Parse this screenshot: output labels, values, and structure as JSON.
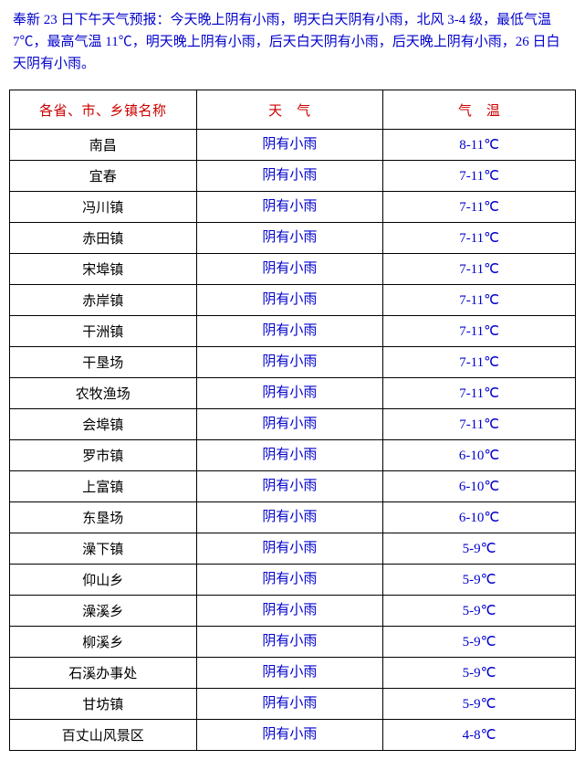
{
  "forecast_text": "奉新 23 日下午天气预报：今天晚上阴有小雨，明天白天阴有小雨，北风 3-4 级，最低气温 7℃，最高气温 11℃，明天晚上阴有小雨，后天白天阴有小雨，后天晚上阴有小雨，26 日白天阴有小雨。",
  "table": {
    "headers": {
      "location": "各省、市、乡镇名称",
      "weather": "天　气",
      "temperature": "气　温"
    },
    "rows": [
      {
        "location": "南昌",
        "weather": "阴有小雨",
        "temperature": "8-11℃"
      },
      {
        "location": "宜春",
        "weather": "阴有小雨",
        "temperature": "7-11℃"
      },
      {
        "location": "冯川镇",
        "weather": "阴有小雨",
        "temperature": "7-11℃"
      },
      {
        "location": "赤田镇",
        "weather": "阴有小雨",
        "temperature": "7-11℃"
      },
      {
        "location": "宋埠镇",
        "weather": "阴有小雨",
        "temperature": "7-11℃"
      },
      {
        "location": "赤岸镇",
        "weather": "阴有小雨",
        "temperature": "7-11℃"
      },
      {
        "location": "干洲镇",
        "weather": "阴有小雨",
        "temperature": "7-11℃"
      },
      {
        "location": "干垦场",
        "weather": "阴有小雨",
        "temperature": "7-11℃"
      },
      {
        "location": "农牧渔场",
        "weather": "阴有小雨",
        "temperature": "7-11℃"
      },
      {
        "location": "会埠镇",
        "weather": "阴有小雨",
        "temperature": "7-11℃"
      },
      {
        "location": "罗市镇",
        "weather": "阴有小雨",
        "temperature": "6-10℃"
      },
      {
        "location": "上富镇",
        "weather": "阴有小雨",
        "temperature": "6-10℃"
      },
      {
        "location": "东垦场",
        "weather": "阴有小雨",
        "temperature": "6-10℃"
      },
      {
        "location": "澡下镇",
        "weather": "阴有小雨",
        "temperature": "5-9℃"
      },
      {
        "location": "仰山乡",
        "weather": "阴有小雨",
        "temperature": "5-9℃"
      },
      {
        "location": "澡溪乡",
        "weather": "阴有小雨",
        "temperature": "5-9℃"
      },
      {
        "location": "柳溪乡",
        "weather": "阴有小雨",
        "temperature": "5-9℃"
      },
      {
        "location": "石溪办事处",
        "weather": "阴有小雨",
        "temperature": "5-9℃"
      },
      {
        "location": "甘坊镇",
        "weather": "阴有小雨",
        "temperature": "5-9℃"
      },
      {
        "location": "百丈山风景区",
        "weather": "阴有小雨",
        "temperature": "4-8℃"
      }
    ]
  },
  "colors": {
    "header_text": "#cc0000",
    "forecast_text": "#0000cc",
    "weather_text": "#0000cc",
    "temp_text": "#0000cc",
    "location_text": "#000000",
    "border": "#000000",
    "background": "#ffffff"
  }
}
